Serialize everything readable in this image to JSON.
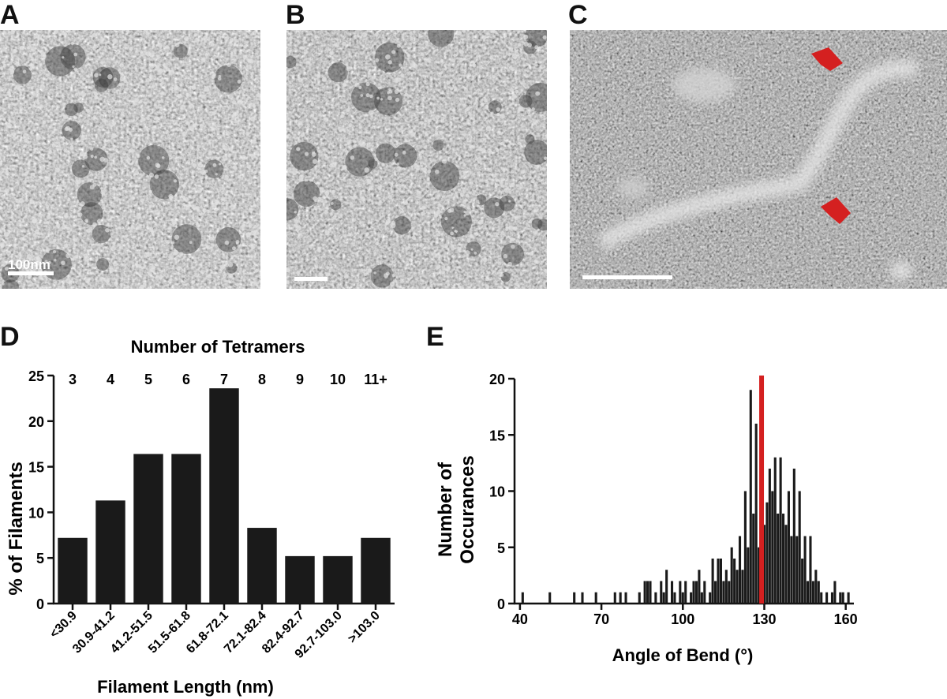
{
  "panels": {
    "a": {
      "letter": "A",
      "scale_label": "100nm"
    },
    "b": {
      "letter": "B"
    },
    "c": {
      "letter": "C"
    },
    "d": {
      "letter": "D"
    },
    "e": {
      "letter": "E"
    }
  },
  "colors": {
    "bar": "#1a1a1a",
    "marker": "#d42020",
    "arrow": "#d42020"
  },
  "chart_data": [
    {
      "type": "bar",
      "xlabel": "Filament Length (nm)",
      "ylabel": "% of Filaments",
      "top_axis_label": "Number of Tetramers",
      "top_categories": [
        "3",
        "4",
        "5",
        "6",
        "7",
        "8",
        "9",
        "10",
        "11+"
      ],
      "categories": [
        "<30.9",
        "30.9-41.2",
        "41.2-51.5",
        "51.5-61.8",
        "61.8-72.1",
        "72.1-82.4",
        "82.4-92.7",
        "92.7-103.0",
        ">103.0"
      ],
      "values": [
        7.2,
        11.3,
        16.4,
        16.4,
        23.6,
        8.3,
        5.2,
        5.2,
        7.2
      ],
      "ylim": [
        0,
        25
      ],
      "yticks": [
        0,
        5,
        10,
        15,
        20,
        25
      ],
      "grid": false
    },
    {
      "type": "bar",
      "xlabel": "Angle of Bend (o)",
      "ylabel": "Number of Occurances",
      "xlim": [
        38,
        163
      ],
      "ylim": [
        0,
        20
      ],
      "xticks": [
        40,
        70,
        100,
        130,
        160
      ],
      "yticks": [
        0,
        5,
        10,
        15,
        20
      ],
      "mean_line": 129,
      "grid": false,
      "bars": [
        {
          "x": 41,
          "y": 1
        },
        {
          "x": 51,
          "y": 1
        },
        {
          "x": 60,
          "y": 1
        },
        {
          "x": 63,
          "y": 1
        },
        {
          "x": 68,
          "y": 1
        },
        {
          "x": 75,
          "y": 1
        },
        {
          "x": 77,
          "y": 1
        },
        {
          "x": 79,
          "y": 1
        },
        {
          "x": 84,
          "y": 1
        },
        {
          "x": 86,
          "y": 2
        },
        {
          "x": 87,
          "y": 2
        },
        {
          "x": 88,
          "y": 2
        },
        {
          "x": 90,
          "y": 1
        },
        {
          "x": 92,
          "y": 2
        },
        {
          "x": 93,
          "y": 1
        },
        {
          "x": 94,
          "y": 3
        },
        {
          "x": 96,
          "y": 2
        },
        {
          "x": 97,
          "y": 1
        },
        {
          "x": 99,
          "y": 2
        },
        {
          "x": 100,
          "y": 1
        },
        {
          "x": 101,
          "y": 2
        },
        {
          "x": 103,
          "y": 1
        },
        {
          "x": 104,
          "y": 2
        },
        {
          "x": 105,
          "y": 2
        },
        {
          "x": 106,
          "y": 3
        },
        {
          "x": 107,
          "y": 1
        },
        {
          "x": 108,
          "y": 2
        },
        {
          "x": 110,
          "y": 1
        },
        {
          "x": 111,
          "y": 4
        },
        {
          "x": 112,
          "y": 2
        },
        {
          "x": 113,
          "y": 4
        },
        {
          "x": 114,
          "y": 4
        },
        {
          "x": 115,
          "y": 2
        },
        {
          "x": 116,
          "y": 3
        },
        {
          "x": 117,
          "y": 2
        },
        {
          "x": 118,
          "y": 5
        },
        {
          "x": 119,
          "y": 4
        },
        {
          "x": 120,
          "y": 3
        },
        {
          "x": 121,
          "y": 6
        },
        {
          "x": 122,
          "y": 3
        },
        {
          "x": 123,
          "y": 10
        },
        {
          "x": 124,
          "y": 5
        },
        {
          "x": 125,
          "y": 19
        },
        {
          "x": 126,
          "y": 8
        },
        {
          "x": 127,
          "y": 16
        },
        {
          "x": 128,
          "y": 5
        },
        {
          "x": 129,
          "y": 10
        },
        {
          "x": 130,
          "y": 7
        },
        {
          "x": 131,
          "y": 9
        },
        {
          "x": 132,
          "y": 12
        },
        {
          "x": 133,
          "y": 10
        },
        {
          "x": 134,
          "y": 13
        },
        {
          "x": 135,
          "y": 8
        },
        {
          "x": 136,
          "y": 13
        },
        {
          "x": 137,
          "y": 8
        },
        {
          "x": 138,
          "y": 7
        },
        {
          "x": 139,
          "y": 10
        },
        {
          "x": 140,
          "y": 6
        },
        {
          "x": 141,
          "y": 12
        },
        {
          "x": 142,
          "y": 6
        },
        {
          "x": 143,
          "y": 10
        },
        {
          "x": 144,
          "y": 4
        },
        {
          "x": 145,
          "y": 6
        },
        {
          "x": 146,
          "y": 2
        },
        {
          "x": 147,
          "y": 6
        },
        {
          "x": 148,
          "y": 2
        },
        {
          "x": 149,
          "y": 3
        },
        {
          "x": 150,
          "y": 2
        },
        {
          "x": 151,
          "y": 1
        },
        {
          "x": 153,
          "y": 1
        },
        {
          "x": 155,
          "y": 1
        },
        {
          "x": 156,
          "y": 2
        },
        {
          "x": 158,
          "y": 1
        },
        {
          "x": 159,
          "y": 1
        },
        {
          "x": 161,
          "y": 1
        }
      ]
    }
  ]
}
